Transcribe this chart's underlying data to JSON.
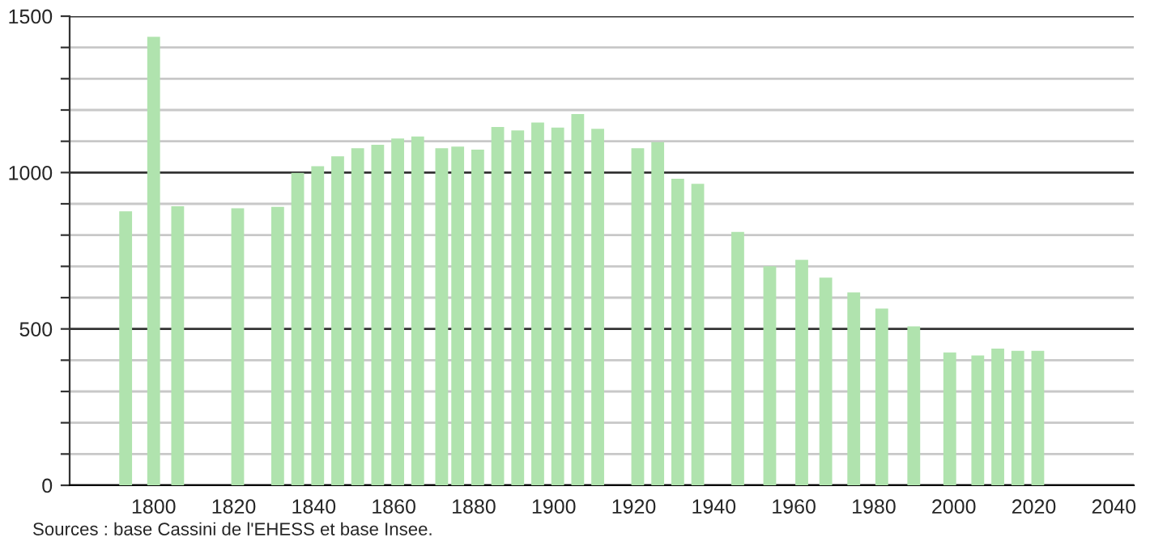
{
  "chart_data": {
    "type": "bar",
    "x": [
      1793,
      1800,
      1806,
      1821,
      1831,
      1836,
      1841,
      1846,
      1851,
      1856,
      1861,
      1866,
      1872,
      1876,
      1881,
      1886,
      1891,
      1896,
      1901,
      1906,
      1911,
      1921,
      1926,
      1931,
      1936,
      1946,
      1954,
      1962,
      1968,
      1975,
      1982,
      1990,
      1999,
      2006,
      2011,
      2016,
      2021
    ],
    "values": [
      876,
      1434,
      892,
      886,
      890,
      999,
      1020,
      1052,
      1078,
      1089,
      1109,
      1115,
      1078,
      1083,
      1073,
      1146,
      1135,
      1160,
      1144,
      1187,
      1140,
      1078,
      1097,
      980,
      964,
      810,
      700,
      721,
      664,
      617,
      565,
      508,
      425,
      415,
      437,
      430,
      430
    ],
    "color": "#b0e3ae",
    "xlim": [
      1779,
      2045
    ],
    "xticks": [
      1800,
      1820,
      1840,
      1860,
      1880,
      1900,
      1920,
      1940,
      1960,
      1980,
      2000,
      2020,
      2040
    ],
    "ylim": [
      0,
      1500
    ],
    "yticks": [
      0,
      {
        "value": 100,
        "label": null
      },
      {
        "value": 200,
        "label": null
      },
      {
        "value": 300,
        "label": null
      },
      {
        "value": 400,
        "label": null
      },
      500,
      {
        "value": 600,
        "label": null
      },
      {
        "value": 700,
        "label": null
      },
      {
        "value": 800,
        "label": null
      },
      {
        "value": 900,
        "label": null
      },
      1000,
      {
        "value": 1100,
        "label": null
      },
      {
        "value": 1200,
        "label": null
      },
      {
        "value": 1300,
        "label": null
      },
      {
        "value": 1400,
        "label": null
      },
      1500
    ],
    "grid": "y",
    "annotations": [
      "Sources : base Cassini de l'EHESS et base Insee."
    ]
  }
}
